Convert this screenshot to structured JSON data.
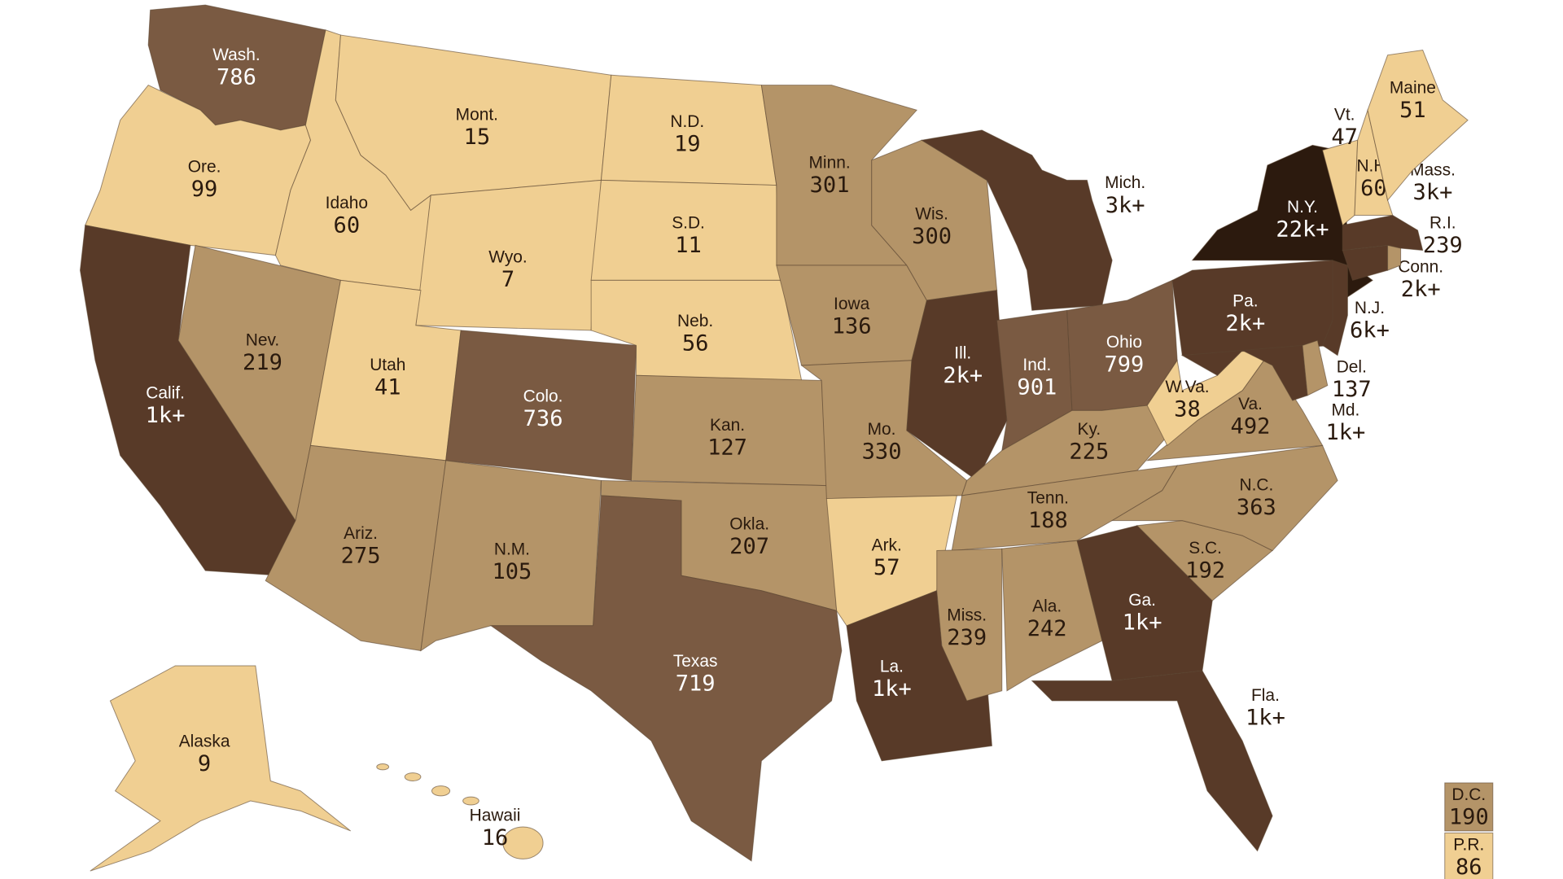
{
  "map": {
    "regions": [
      {
        "name": "Wash.",
        "value": 786,
        "color": "#7a5a42"
      },
      {
        "name": "Ore.",
        "value": 99,
        "color": "#f0cf92"
      },
      {
        "name": "Calif.",
        "value": {
          "value": 1000,
          "label": "1k+"
        },
        "color": "#583a28"
      },
      {
        "name": "Idaho",
        "value": 60,
        "color": "#f0cf92"
      },
      {
        "name": "Nev.",
        "value": 219,
        "color": "#b49468"
      },
      {
        "name": "Mont.",
        "value": 15,
        "color": "#f0cf92"
      },
      {
        "name": "Wyo.",
        "value": 7,
        "color": "#f0cf92"
      },
      {
        "name": "Utah",
        "value": 41,
        "color": "#f0cf92"
      },
      {
        "name": "Ariz.",
        "value": 275,
        "color": "#b49468"
      },
      {
        "name": "Colo.",
        "value": 736,
        "color": "#7a5a42"
      },
      {
        "name": "N.M.",
        "value": 105,
        "color": "#b49468"
      },
      {
        "name": "N.D.",
        "value": 19,
        "color": "#f0cf92"
      },
      {
        "name": "S.D.",
        "value": 11,
        "color": "#f0cf92"
      },
      {
        "name": "Neb.",
        "value": 56,
        "color": "#f0cf92"
      },
      {
        "name": "Kan.",
        "value": 127,
        "color": "#b49468"
      },
      {
        "name": "Okla.",
        "value": 207,
        "color": "#b49468"
      },
      {
        "name": "Texas",
        "value": 719,
        "color": "#7a5a42"
      },
      {
        "name": "Minn.",
        "value": 301,
        "color": "#b49468"
      },
      {
        "name": "Iowa",
        "value": 136,
        "color": "#b49468"
      },
      {
        "name": "Mo.",
        "value": 330,
        "color": "#b49468"
      },
      {
        "name": "Ark.",
        "value": 57,
        "color": "#f0cf92"
      },
      {
        "name": "La.",
        "value": {
          "value": 1000,
          "label": "1k+"
        },
        "color": "#583a28"
      },
      {
        "name": "Wis.",
        "value": 300,
        "color": "#b49468"
      },
      {
        "name": "Ill.",
        "value": {
          "value": 2000,
          "label": "2k+"
        },
        "color": "#583a28"
      },
      {
        "name": "Mich.",
        "value": {
          "value": 3000,
          "label": "3k+"
        },
        "color": "#583a28"
      },
      {
        "name": "Ind.",
        "value": 901,
        "color": "#7a5a42"
      },
      {
        "name": "Ohio",
        "value": 799,
        "color": "#7a5a42"
      },
      {
        "name": "Ky.",
        "value": 225,
        "color": "#b49468"
      },
      {
        "name": "Tenn.",
        "value": 188,
        "color": "#b49468"
      },
      {
        "name": "Miss.",
        "value": 239,
        "color": "#b49468"
      },
      {
        "name": "Ala.",
        "value": 242,
        "color": "#b49468"
      },
      {
        "name": "Ga.",
        "value": {
          "value": 1000,
          "label": "1k+"
        },
        "color": "#583a28"
      },
      {
        "name": "Fla.",
        "value": {
          "value": 1000,
          "label": "1k+"
        },
        "color": "#583a28"
      },
      {
        "name": "S.C.",
        "value": 192,
        "color": "#b49468"
      },
      {
        "name": "N.C.",
        "value": 363,
        "color": "#b49468"
      },
      {
        "name": "Va.",
        "value": 492,
        "color": "#b49468"
      },
      {
        "name": "W.Va.",
        "value": 38,
        "color": "#f0cf92"
      },
      {
        "name": "Pa.",
        "value": {
          "value": 2000,
          "label": "2k+"
        },
        "color": "#583a28"
      },
      {
        "name": "N.Y.",
        "value": {
          "value": 22000,
          "label": "22k+"
        },
        "color": "#2c1a0e"
      },
      {
        "name": "Md.",
        "value": {
          "value": 1000,
          "label": "1k+"
        },
        "color": "#583a28"
      },
      {
        "name": "Del.",
        "value": 137,
        "color": "#b49468"
      },
      {
        "name": "N.J.",
        "value": {
          "value": 6000,
          "label": "6k+"
        },
        "color": "#583a28"
      },
      {
        "name": "Conn.",
        "value": {
          "value": 2000,
          "label": "2k+"
        },
        "color": "#583a28"
      },
      {
        "name": "R.I.",
        "value": 239,
        "color": "#b49468"
      },
      {
        "name": "Mass.",
        "value": {
          "value": 3000,
          "label": "3k+"
        },
        "color": "#583a28"
      },
      {
        "name": "Vt.",
        "value": 47,
        "color": "#f0cf92"
      },
      {
        "name": "N.H.",
        "value": 60,
        "color": "#f0cf92"
      },
      {
        "name": "Maine",
        "value": 51,
        "color": "#f0cf92"
      },
      {
        "name": "Alaska",
        "value": 9,
        "color": "#f0cf92"
      },
      {
        "name": "Hawaii",
        "value": 16,
        "color": "#f0cf92"
      },
      {
        "name": "D.C.",
        "value": 190,
        "color": "#b49468"
      },
      {
        "name": "P.R.",
        "value": 86,
        "color": "#f0cf92"
      }
    ]
  }
}
